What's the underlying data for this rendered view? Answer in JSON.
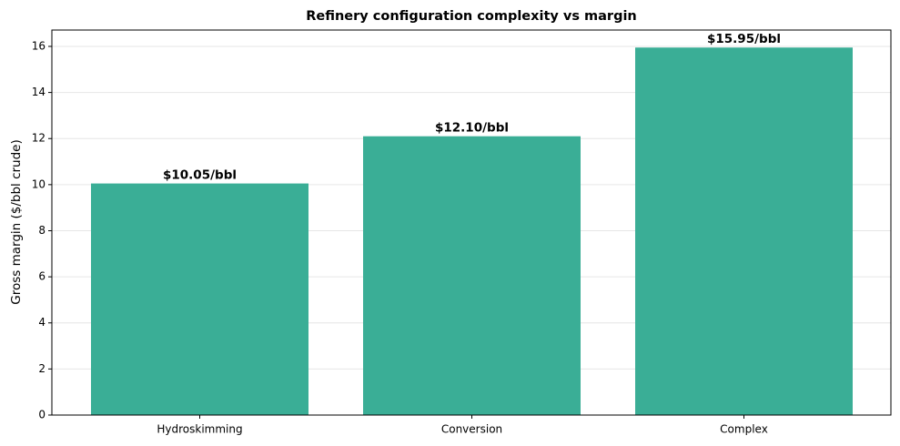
{
  "chart_data": {
    "type": "bar",
    "title": "Refinery configuration complexity vs margin",
    "ylabel": "Gross margin ($/bbl crude)",
    "categories": [
      "Hydroskimming",
      "Conversion",
      "Complex"
    ],
    "values": [
      10.05,
      12.1,
      15.95
    ],
    "value_labels": [
      "$10.05/bbl",
      "$12.10/bbl",
      "$15.95/bbl"
    ],
    "color": "#3aae96",
    "ylim": [
      0,
      16.71
    ],
    "yticks": [
      0,
      2,
      4,
      6,
      8,
      10,
      12,
      14,
      16
    ],
    "grid": true
  }
}
